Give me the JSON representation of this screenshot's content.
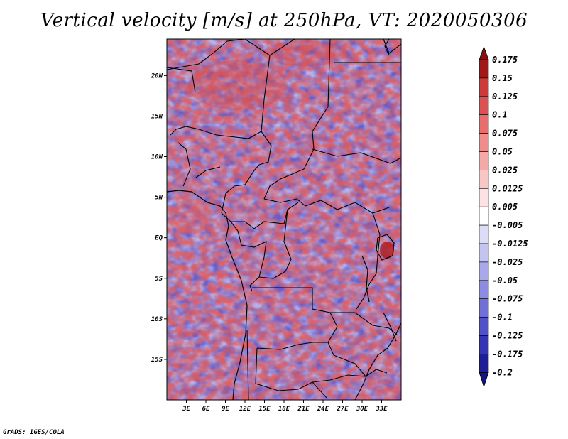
{
  "chart_data": {
    "type": "heatmap",
    "title": "Vertical velocity [m/s] at 250hPa, VT: 2020050306",
    "variable": "Vertical velocity",
    "units": "m/s",
    "level": "250hPa",
    "valid_time": "2020050306",
    "lon_range": [
      0,
      36
    ],
    "lat_range": [
      -20,
      24.5
    ],
    "x_ticks": [
      {
        "value": 3,
        "label": "3E"
      },
      {
        "value": 6,
        "label": "6E"
      },
      {
        "value": 9,
        "label": "9E"
      },
      {
        "value": 12,
        "label": "12E"
      },
      {
        "value": 15,
        "label": "15E"
      },
      {
        "value": 18,
        "label": "18E"
      },
      {
        "value": 21,
        "label": "21E"
      },
      {
        "value": 24,
        "label": "24E"
      },
      {
        "value": 27,
        "label": "27E"
      },
      {
        "value": 30,
        "label": "30E"
      },
      {
        "value": 33,
        "label": "33E"
      }
    ],
    "y_ticks": [
      {
        "value": 20,
        "label": "20N"
      },
      {
        "value": 15,
        "label": "15N"
      },
      {
        "value": 10,
        "label": "10N"
      },
      {
        "value": 5,
        "label": "5N"
      },
      {
        "value": 0,
        "label": "EQ"
      },
      {
        "value": -5,
        "label": "5S"
      },
      {
        "value": -10,
        "label": "10S"
      },
      {
        "value": -15,
        "label": "15S"
      }
    ],
    "colorbar": {
      "levels": [
        {
          "label": "0.175",
          "color": "#a01818"
        },
        {
          "label": "0.15",
          "color": "#b82424"
        },
        {
          "label": "0.125",
          "color": "#cc3a3a"
        },
        {
          "label": "0.1",
          "color": "#dc5252"
        },
        {
          "label": "0.075",
          "color": "#e86e6e"
        },
        {
          "label": "0.05",
          "color": "#f08c8c"
        },
        {
          "label": "0.025",
          "color": "#f5a8a8"
        },
        {
          "label": "0.0125",
          "color": "#f9c6c6"
        },
        {
          "label": "0.005",
          "color": "#fce2e2"
        },
        {
          "label": "-0.005",
          "color": "#ffffff"
        },
        {
          "label": "-0.0125",
          "color": "#dcdcf6"
        },
        {
          "label": "-0.025",
          "color": "#c4c4f0"
        },
        {
          "label": "-0.05",
          "color": "#a8a8ea"
        },
        {
          "label": "-0.075",
          "color": "#8c8ce2"
        },
        {
          "label": "-0.1",
          "color": "#7070d8"
        },
        {
          "label": "-0.125",
          "color": "#5252c8"
        },
        {
          "label": "-0.175",
          "color": "#3434b4"
        },
        {
          "label": "-0.2",
          "color": "#1e1e96"
        }
      ],
      "top_arrow_color": "#8c1010",
      "bottom_arrow_color": "#14148a"
    }
  },
  "footer": "GrADS: IGES/COLA"
}
